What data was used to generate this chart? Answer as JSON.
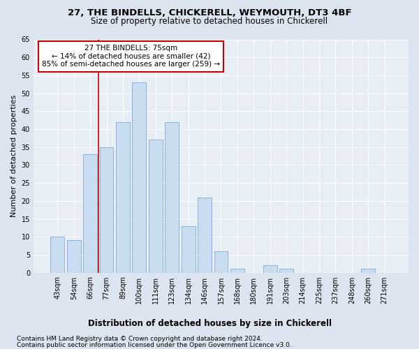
{
  "title": "27, THE BINDELLS, CHICKERELL, WEYMOUTH, DT3 4BF",
  "subtitle": "Size of property relative to detached houses in Chickerell",
  "xlabel": "Distribution of detached houses by size in Chickerell",
  "ylabel": "Number of detached properties",
  "categories": [
    "43sqm",
    "54sqm",
    "66sqm",
    "77sqm",
    "89sqm",
    "100sqm",
    "111sqm",
    "123sqm",
    "134sqm",
    "146sqm",
    "157sqm",
    "168sqm",
    "180sqm",
    "191sqm",
    "203sqm",
    "214sqm",
    "225sqm",
    "237sqm",
    "248sqm",
    "260sqm",
    "271sqm"
  ],
  "values": [
    10,
    9,
    33,
    35,
    42,
    53,
    37,
    42,
    13,
    21,
    6,
    1,
    0,
    2,
    1,
    0,
    0,
    0,
    0,
    1,
    0
  ],
  "bar_color": "#c9dcf0",
  "bar_edge_color": "#8ab4d8",
  "vline_x": 2.5,
  "vline_color": "#cc0000",
  "marker_label": "27 THE BINDELLS: 75sqm",
  "annotation_line1": "← 14% of detached houses are smaller (42)",
  "annotation_line2": "85% of semi-detached houses are larger (259) →",
  "annotation_box_color": "#ffffff",
  "annotation_box_edge": "#cc0000",
  "ylim": [
    0,
    65
  ],
  "yticks": [
    0,
    5,
    10,
    15,
    20,
    25,
    30,
    35,
    40,
    45,
    50,
    55,
    60,
    65
  ],
  "footnote1": "Contains HM Land Registry data © Crown copyright and database right 2024.",
  "footnote2": "Contains public sector information licensed under the Open Government Licence v3.0.",
  "bg_color": "#dce4ef",
  "plot_bg_color": "#e8eef6",
  "title_fontsize": 9.5,
  "subtitle_fontsize": 8.5,
  "ylabel_fontsize": 8,
  "xlabel_fontsize": 8.5,
  "tick_fontsize": 7,
  "annotation_fontsize": 7.5,
  "footnote_fontsize": 6.5
}
